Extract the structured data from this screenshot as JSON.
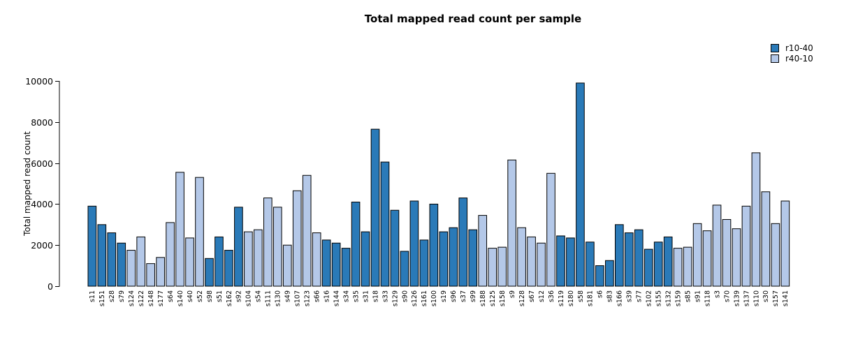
{
  "chart_data": {
    "type": "bar",
    "title": "Total mapped read count per sample",
    "xlabel": "",
    "ylabel": "Total mapped read count",
    "ylim": [
      0,
      10000
    ],
    "yticks": [
      0,
      2000,
      4000,
      6000,
      8000,
      10000
    ],
    "grid": false,
    "bar_border_color": "#000000",
    "legend": {
      "position": "top-right",
      "entries": [
        {
          "name": "r10-40",
          "color": "#2a7ab8"
        },
        {
          "name": "r40-10",
          "color": "#b4c8e8"
        }
      ]
    },
    "bars": [
      {
        "label": "s11",
        "value": 3900,
        "series": "r10-40"
      },
      {
        "label": "s151",
        "value": 3000,
        "series": "r10-40"
      },
      {
        "label": "s28",
        "value": 2600,
        "series": "r10-40"
      },
      {
        "label": "s79",
        "value": 2100,
        "series": "r10-40"
      },
      {
        "label": "s124",
        "value": 1750,
        "series": "r40-10"
      },
      {
        "label": "s122",
        "value": 2400,
        "series": "r40-10"
      },
      {
        "label": "s148",
        "value": 1100,
        "series": "r40-10"
      },
      {
        "label": "s177",
        "value": 1400,
        "series": "r40-10"
      },
      {
        "label": "s64",
        "value": 3100,
        "series": "r40-10"
      },
      {
        "label": "s140",
        "value": 5550,
        "series": "r40-10"
      },
      {
        "label": "s40",
        "value": 2350,
        "series": "r40-10"
      },
      {
        "label": "s52",
        "value": 5300,
        "series": "r40-10"
      },
      {
        "label": "s98",
        "value": 1350,
        "series": "r10-40"
      },
      {
        "label": "s51",
        "value": 2400,
        "series": "r10-40"
      },
      {
        "label": "s162",
        "value": 1750,
        "series": "r10-40"
      },
      {
        "label": "s92",
        "value": 3850,
        "series": "r10-40"
      },
      {
        "label": "s104",
        "value": 2650,
        "series": "r40-10"
      },
      {
        "label": "s54",
        "value": 2750,
        "series": "r40-10"
      },
      {
        "label": "s111",
        "value": 4300,
        "series": "r40-10"
      },
      {
        "label": "s130",
        "value": 3850,
        "series": "r40-10"
      },
      {
        "label": "s49",
        "value": 2000,
        "series": "r40-10"
      },
      {
        "label": "s107",
        "value": 4650,
        "series": "r40-10"
      },
      {
        "label": "s123",
        "value": 5400,
        "series": "r40-10"
      },
      {
        "label": "s66",
        "value": 2600,
        "series": "r40-10"
      },
      {
        "label": "s16",
        "value": 2250,
        "series": "r10-40"
      },
      {
        "label": "s144",
        "value": 2100,
        "series": "r10-40"
      },
      {
        "label": "s34",
        "value": 1850,
        "series": "r10-40"
      },
      {
        "label": "s35",
        "value": 4100,
        "series": "r10-40"
      },
      {
        "label": "s31",
        "value": 2650,
        "series": "r10-40"
      },
      {
        "label": "s18",
        "value": 7650,
        "series": "r10-40"
      },
      {
        "label": "s33",
        "value": 6050,
        "series": "r10-40"
      },
      {
        "label": "s129",
        "value": 3700,
        "series": "r10-40"
      },
      {
        "label": "s90",
        "value": 1700,
        "series": "r10-40"
      },
      {
        "label": "s126",
        "value": 4150,
        "series": "r10-40"
      },
      {
        "label": "s161",
        "value": 2250,
        "series": "r10-40"
      },
      {
        "label": "s100",
        "value": 4000,
        "series": "r10-40"
      },
      {
        "label": "s19",
        "value": 2650,
        "series": "r10-40"
      },
      {
        "label": "s96",
        "value": 2850,
        "series": "r10-40"
      },
      {
        "label": "s37",
        "value": 4300,
        "series": "r10-40"
      },
      {
        "label": "s99",
        "value": 2750,
        "series": "r10-40"
      },
      {
        "label": "s188",
        "value": 3450,
        "series": "r40-10"
      },
      {
        "label": "s125",
        "value": 1850,
        "series": "r40-10"
      },
      {
        "label": "s158",
        "value": 1900,
        "series": "r40-10"
      },
      {
        "label": "s9",
        "value": 6150,
        "series": "r40-10"
      },
      {
        "label": "s128",
        "value": 2850,
        "series": "r40-10"
      },
      {
        "label": "s67",
        "value": 2400,
        "series": "r40-10"
      },
      {
        "label": "s12",
        "value": 2100,
        "series": "r40-10"
      },
      {
        "label": "s36",
        "value": 5500,
        "series": "r40-10"
      },
      {
        "label": "s119",
        "value": 2450,
        "series": "r10-40"
      },
      {
        "label": "s180",
        "value": 2350,
        "series": "r10-40"
      },
      {
        "label": "s58",
        "value": 9900,
        "series": "r10-40"
      },
      {
        "label": "s181",
        "value": 2150,
        "series": "r10-40"
      },
      {
        "label": "s6",
        "value": 1000,
        "series": "r10-40"
      },
      {
        "label": "s83",
        "value": 1250,
        "series": "r10-40"
      },
      {
        "label": "s166",
        "value": 3000,
        "series": "r10-40"
      },
      {
        "label": "s39",
        "value": 2600,
        "series": "r10-40"
      },
      {
        "label": "s77",
        "value": 2750,
        "series": "r10-40"
      },
      {
        "label": "s102",
        "value": 1800,
        "series": "r10-40"
      },
      {
        "label": "s155",
        "value": 2150,
        "series": "r10-40"
      },
      {
        "label": "s132",
        "value": 2400,
        "series": "r10-40"
      },
      {
        "label": "s159",
        "value": 1850,
        "series": "r40-10"
      },
      {
        "label": "s85",
        "value": 1900,
        "series": "r40-10"
      },
      {
        "label": "s91",
        "value": 3050,
        "series": "r40-10"
      },
      {
        "label": "s118",
        "value": 2700,
        "series": "r40-10"
      },
      {
        "label": "s3",
        "value": 3950,
        "series": "r40-10"
      },
      {
        "label": "s70",
        "value": 3250,
        "series": "r40-10"
      },
      {
        "label": "s139",
        "value": 2800,
        "series": "r40-10"
      },
      {
        "label": "s137",
        "value": 3900,
        "series": "r40-10"
      },
      {
        "label": "s110",
        "value": 6500,
        "series": "r40-10"
      },
      {
        "label": "s30",
        "value": 4600,
        "series": "r40-10"
      },
      {
        "label": "s157",
        "value": 3050,
        "series": "r40-10"
      },
      {
        "label": "s141",
        "value": 4150,
        "series": "r40-10"
      }
    ]
  }
}
